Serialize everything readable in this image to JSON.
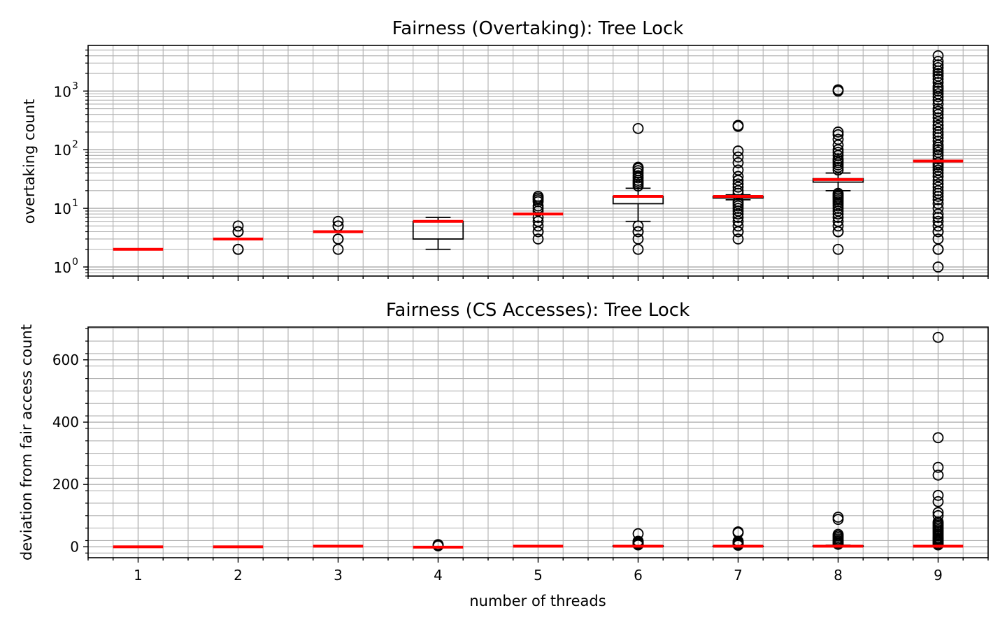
{
  "chart_data": [
    {
      "type": "box",
      "title": "Fairness (Overtaking): Tree Lock",
      "xlabel": "",
      "ylabel": "overtaking count",
      "yscale": "log",
      "ylim": [
        0.7,
        6000
      ],
      "grid": "major and minor",
      "categories": [
        "1",
        "2",
        "3",
        "4",
        "5",
        "6",
        "7",
        "8",
        "9"
      ],
      "yticks": [
        1,
        10,
        100,
        1000
      ],
      "ytick_labels": [
        "10",
        "10",
        "10",
        "10"
      ],
      "ytick_exponents": [
        "0",
        "1",
        "2",
        "3"
      ],
      "boxes": [
        {
          "category": "1",
          "whislo": 2,
          "q1": 2,
          "median": 2,
          "q3": 2,
          "whishi": 2,
          "fliers": []
        },
        {
          "category": "2",
          "whislo": 3,
          "q1": 3,
          "median": 3,
          "q3": 3,
          "whishi": 3,
          "fliers": [
            2,
            2,
            4,
            4,
            5
          ]
        },
        {
          "category": "3",
          "whislo": 4,
          "q1": 4,
          "median": 4,
          "q3": 4,
          "whishi": 4,
          "fliers": [
            2,
            3,
            3,
            5,
            5,
            6
          ]
        },
        {
          "category": "4",
          "whislo": 2,
          "q1": 3,
          "median": 6,
          "q3": 6,
          "whishi": 7,
          "fliers": []
        },
        {
          "category": "5",
          "whislo": 8,
          "q1": 8,
          "median": 8,
          "q3": 8,
          "whishi": 8,
          "fliers": [
            3,
            4,
            4,
            5,
            6,
            7,
            9,
            10,
            11,
            13,
            14,
            15,
            16
          ]
        },
        {
          "category": "6",
          "whislo": 6,
          "q1": 12,
          "median": 16,
          "q3": 16,
          "whishi": 22,
          "fliers": [
            2,
            3,
            4,
            4,
            5,
            24,
            26,
            28,
            30,
            33,
            36,
            40,
            44,
            48,
            50,
            230
          ]
        },
        {
          "category": "7",
          "whislo": 14,
          "q1": 15,
          "median": 16,
          "q3": 16,
          "whishi": 17,
          "fliers": [
            3,
            4,
            4,
            5,
            6,
            7,
            8,
            9,
            10,
            11,
            12,
            13,
            18,
            20,
            23,
            26,
            30,
            35,
            45,
            60,
            75,
            95,
            250,
            260
          ]
        },
        {
          "category": "8",
          "whislo": 20,
          "q1": 28,
          "median": 31,
          "q3": 32,
          "whishi": 40,
          "fliers": [
            2,
            4,
            4,
            5,
            6,
            7,
            8,
            9,
            10,
            11,
            12,
            13,
            14,
            15,
            16,
            17,
            18,
            45,
            50,
            55,
            60,
            65,
            70,
            80,
            90,
            100,
            120,
            150,
            180,
            200,
            1000,
            1050
          ]
        },
        {
          "category": "9",
          "whislo": 64,
          "q1": 64,
          "median": 64,
          "q3": 64,
          "whishi": 64,
          "fliers": [
            1,
            2,
            2,
            3,
            4,
            4,
            5,
            6,
            7,
            8,
            10,
            12,
            14,
            16,
            18,
            20,
            23,
            26,
            30,
            35,
            40,
            45,
            50,
            55,
            60,
            70,
            80,
            90,
            100,
            110,
            120,
            140,
            160,
            180,
            200,
            230,
            260,
            300,
            350,
            400,
            450,
            500,
            600,
            700,
            800,
            900,
            1000,
            1100,
            1200,
            1400,
            1600,
            1800,
            2000,
            2200,
            2500,
            2800,
            3200,
            4000
          ]
        }
      ]
    },
    {
      "type": "box",
      "title": "Fairness (CS Accesses): Tree Lock",
      "xlabel": "number of threads",
      "ylabel": "deviation from fair access count",
      "yscale": "linear",
      "ylim": [
        -35,
        705
      ],
      "grid": "major and minor",
      "categories": [
        "1",
        "2",
        "3",
        "4",
        "5",
        "6",
        "7",
        "8",
        "9"
      ],
      "yticks": [
        0,
        200,
        400,
        600
      ],
      "ytick_labels": [
        "0",
        "200",
        "400",
        "600"
      ],
      "boxes": [
        {
          "category": "1",
          "whislo": 0,
          "q1": 0,
          "median": 0,
          "q3": 0,
          "whishi": 0,
          "fliers": []
        },
        {
          "category": "2",
          "whislo": 0,
          "q1": 0,
          "median": 0,
          "q3": 0,
          "whishi": 0,
          "fliers": []
        },
        {
          "category": "3",
          "whislo": 2,
          "q1": 2,
          "median": 2,
          "q3": 2,
          "whishi": 2,
          "fliers": []
        },
        {
          "category": "4",
          "whislo": -1,
          "q1": -1,
          "median": -1,
          "q3": -1,
          "whishi": -1,
          "fliers": [
            3,
            4,
            6,
            7
          ]
        },
        {
          "category": "5",
          "whislo": 2,
          "q1": 2,
          "median": 2,
          "q3": 2,
          "whishi": 2,
          "fliers": []
        },
        {
          "category": "6",
          "whislo": 0,
          "q1": 1,
          "median": 2,
          "q3": 3,
          "whishi": 4,
          "fliers": [
            6,
            8,
            10,
            12,
            14,
            16,
            18,
            42
          ]
        },
        {
          "category": "7",
          "whislo": 1,
          "q1": 1,
          "median": 2,
          "q3": 2,
          "whishi": 3,
          "fliers": [
            5,
            8,
            12,
            15,
            18,
            45,
            48
          ]
        },
        {
          "category": "8",
          "whislo": 1,
          "q1": 1,
          "median": 2,
          "q3": 3,
          "whishi": 5,
          "fliers": [
            8,
            12,
            16,
            20,
            25,
            30,
            35,
            40,
            88,
            95
          ]
        },
        {
          "category": "9",
          "whislo": 2,
          "q1": 2,
          "median": 2,
          "q3": 2,
          "whishi": 2,
          "fliers": [
            6,
            10,
            14,
            18,
            22,
            26,
            30,
            35,
            40,
            45,
            50,
            55,
            60,
            65,
            70,
            75,
            80,
            100,
            110,
            145,
            165,
            230,
            255,
            350,
            672
          ]
        }
      ]
    }
  ]
}
